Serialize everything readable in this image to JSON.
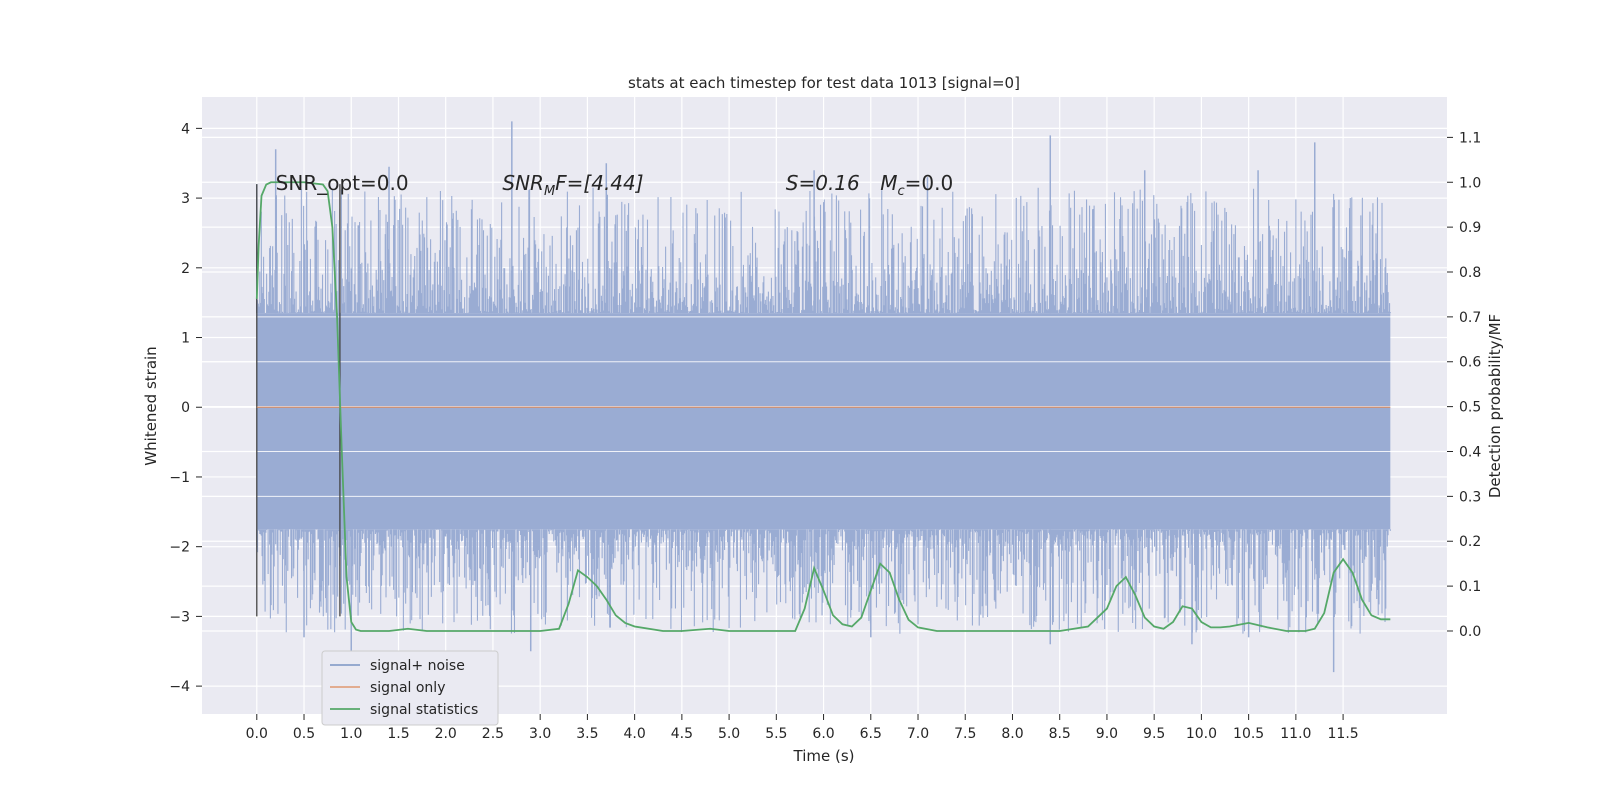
{
  "chart_data": {
    "type": "line",
    "title": "stats at each timestep for test data 1013 [signal=0]",
    "xlabel": "Time (s)",
    "ylabel": "Whitened strain",
    "y2label": "Detection probability/MF",
    "xlim": [
      -0.58,
      12.6
    ],
    "ylim": [
      -4.4,
      4.45
    ],
    "y2lim": [
      -0.185,
      1.19
    ],
    "x_ticks": [
      "0.0",
      "0.5",
      "1.0",
      "1.5",
      "2.0",
      "2.5",
      "3.0",
      "3.5",
      "4.0",
      "4.5",
      "5.0",
      "5.5",
      "6.0",
      "6.5",
      "7.0",
      "7.5",
      "8.0",
      "8.5",
      "9.0",
      "9.5",
      "10.0",
      "10.5",
      "11.0",
      "11.5"
    ],
    "y_ticks": [
      "−4",
      "−3",
      "−2",
      "−1",
      "0",
      "1",
      "2",
      "3",
      "4"
    ],
    "y2_ticks": [
      "0.0",
      "0.1",
      "0.2",
      "0.3",
      "0.4",
      "0.5",
      "0.6",
      "0.7",
      "0.8",
      "0.9",
      "1.0",
      "1.1"
    ],
    "grid": true,
    "legend_position": "lower-left",
    "series": [
      {
        "name": "signal+ noise",
        "color": "#4c72b0",
        "style": "noise band",
        "x_range": [
          0,
          12.0
        ],
        "core_range": [
          -1.75,
          1.35
        ],
        "extreme_peaks": [
          [
            0.0,
            3.2
          ],
          [
            0.2,
            3.7
          ],
          [
            1.4,
            3.45
          ],
          [
            2.7,
            4.1
          ],
          [
            3.7,
            3.5
          ],
          [
            5.9,
            3.4
          ],
          [
            7.1,
            3.3
          ],
          [
            8.4,
            3.9
          ],
          [
            9.4,
            3.4
          ],
          [
            10.6,
            3.4
          ],
          [
            11.2,
            3.8
          ],
          [
            1.0,
            -3.5
          ],
          [
            2.9,
            -3.5
          ],
          [
            6.5,
            -3.3
          ],
          [
            8.4,
            -3.4
          ],
          [
            9.9,
            -3.4
          ],
          [
            10.5,
            -3.3
          ],
          [
            11.4,
            -3.8
          ],
          [
            0.5,
            -3.3
          ]
        ]
      },
      {
        "name": "signal only",
        "color": "#dd8452",
        "x": [
          0,
          12.0
        ],
        "y": [
          0,
          0
        ]
      },
      {
        "name": "signal statistics",
        "color": "#55a868",
        "axis": "right",
        "x": [
          0.0,
          0.02,
          0.05,
          0.1,
          0.15,
          0.2,
          0.3,
          0.5,
          0.7,
          0.75,
          0.8,
          0.85,
          0.9,
          0.95,
          1.0,
          1.05,
          1.1,
          1.2,
          1.4,
          1.6,
          1.8,
          2.0,
          2.5,
          3.0,
          3.2,
          3.3,
          3.4,
          3.5,
          3.6,
          3.7,
          3.8,
          3.9,
          4.0,
          4.3,
          4.5,
          4.8,
          5.0,
          5.5,
          5.7,
          5.8,
          5.9,
          6.0,
          6.1,
          6.2,
          6.3,
          6.4,
          6.5,
          6.6,
          6.7,
          6.8,
          6.9,
          7.0,
          7.2,
          7.5,
          8.0,
          8.5,
          8.8,
          9.0,
          9.1,
          9.2,
          9.3,
          9.4,
          9.5,
          9.6,
          9.7,
          9.8,
          9.9,
          10.0,
          10.1,
          10.2,
          10.3,
          10.5,
          10.7,
          10.9,
          11.1,
          11.2,
          11.3,
          11.4,
          11.5,
          11.6,
          11.7,
          11.8,
          11.9,
          12.0
        ],
        "y": [
          0.74,
          0.86,
          0.97,
          0.995,
          1.0,
          1.0,
          1.0,
          1.0,
          0.995,
          0.98,
          0.9,
          0.7,
          0.4,
          0.12,
          0.02,
          0.003,
          0.0,
          0.0,
          0.0,
          0.005,
          0.0,
          0.0,
          0.0,
          0.0,
          0.005,
          0.06,
          0.135,
          0.12,
          0.1,
          0.07,
          0.035,
          0.018,
          0.01,
          0.0,
          0.0,
          0.005,
          0.0,
          0.0,
          0.0,
          0.05,
          0.14,
          0.09,
          0.035,
          0.015,
          0.01,
          0.03,
          0.09,
          0.15,
          0.13,
          0.07,
          0.025,
          0.008,
          0.0,
          0.0,
          0.0,
          0.0,
          0.01,
          0.05,
          0.1,
          0.12,
          0.08,
          0.03,
          0.01,
          0.005,
          0.02,
          0.055,
          0.05,
          0.02,
          0.008,
          0.008,
          0.01,
          0.018,
          0.008,
          0.0,
          0.0,
          0.005,
          0.04,
          0.13,
          0.16,
          0.13,
          0.07,
          0.035,
          0.026,
          0.026
        ]
      }
    ],
    "vertical_markers": [
      0.0,
      0.88
    ],
    "annotations": [
      {
        "text": "SNR_opt=0.0",
        "x": 0.2,
        "y": 3.2
      },
      {
        "text": "SNR",
        "sub": "M",
        "tail": "F=[4.44]",
        "x": 2.6,
        "y": 3.2
      },
      {
        "text": "S=0.16",
        "x": 5.6,
        "y": 3.2
      },
      {
        "text": "M",
        "sub": "c",
        "tail": "=0.0",
        "x": 6.6,
        "y": 3.2
      }
    ]
  }
}
